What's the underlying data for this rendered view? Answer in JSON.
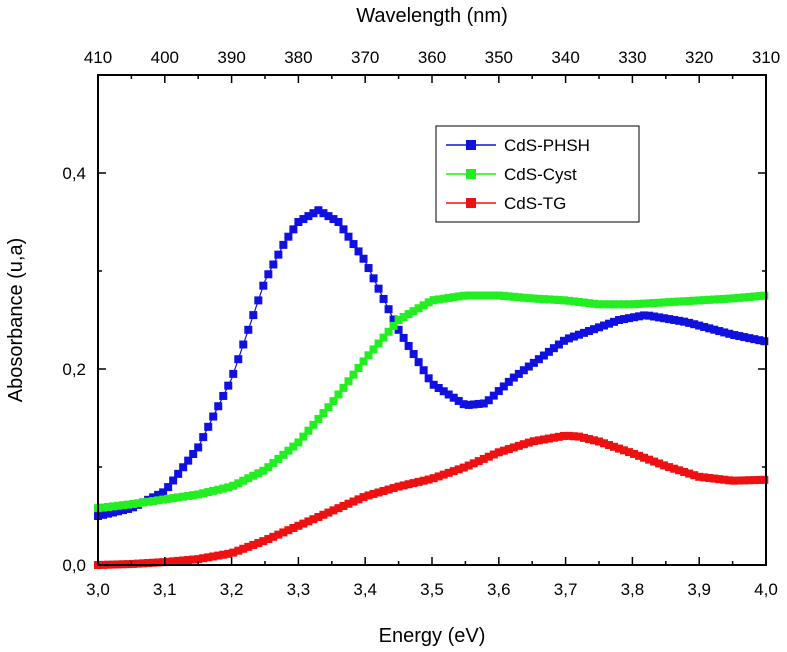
{
  "chart_data": {
    "type": "scatter",
    "xlabel": "Energy (eV)",
    "ylabel": "Abosorbance (u,a)",
    "top_axis_label": "Wavelength (nm)",
    "xlim": [
      3.0,
      4.0
    ],
    "ylim": [
      0.0,
      0.5
    ],
    "x_ticks": [
      3.0,
      3.1,
      3.2,
      3.3,
      3.4,
      3.5,
      3.6,
      3.7,
      3.8,
      3.9,
      4.0
    ],
    "x_tick_labels": [
      "3,0",
      "3,1",
      "3,2",
      "3,3",
      "3,4",
      "3,5",
      "3,6",
      "3,7",
      "3,8",
      "3,9",
      "4,0"
    ],
    "y_ticks": [
      0.0,
      0.2,
      0.4
    ],
    "y_tick_labels": [
      "0,0",
      "0,2",
      "0,4"
    ],
    "top_ticks_nm": [
      410,
      400,
      390,
      380,
      370,
      360,
      350,
      340,
      330,
      320,
      310
    ],
    "top_tick_labels": [
      "410",
      "400",
      "390",
      "380",
      "370",
      "360",
      "350",
      "340",
      "330",
      "320",
      "310"
    ],
    "grid": false,
    "legend_position": "top-right",
    "series": [
      {
        "name": "CdS-PHSH",
        "color": "#1010e0",
        "marker": "square",
        "x": [
          3.0,
          3.05,
          3.1,
          3.15,
          3.2,
          3.22,
          3.25,
          3.28,
          3.3,
          3.33,
          3.36,
          3.4,
          3.45,
          3.5,
          3.55,
          3.58,
          3.62,
          3.7,
          3.78,
          3.82,
          3.88,
          3.95,
          4.0
        ],
        "y": [
          0.05,
          0.058,
          0.075,
          0.12,
          0.19,
          0.23,
          0.29,
          0.33,
          0.35,
          0.362,
          0.35,
          0.31,
          0.24,
          0.185,
          0.163,
          0.165,
          0.19,
          0.23,
          0.25,
          0.255,
          0.248,
          0.235,
          0.228
        ]
      },
      {
        "name": "CdS-Cyst",
        "color": "#22ee22",
        "marker": "square",
        "x": [
          3.0,
          3.05,
          3.1,
          3.15,
          3.2,
          3.25,
          3.3,
          3.35,
          3.4,
          3.45,
          3.5,
          3.55,
          3.6,
          3.65,
          3.7,
          3.75,
          3.8,
          3.85,
          3.9,
          3.95,
          4.0
        ],
        "y": [
          0.058,
          0.062,
          0.067,
          0.072,
          0.08,
          0.097,
          0.125,
          0.165,
          0.21,
          0.25,
          0.27,
          0.275,
          0.275,
          0.272,
          0.27,
          0.266,
          0.266,
          0.268,
          0.27,
          0.272,
          0.275
        ]
      },
      {
        "name": "CdS-TG",
        "color": "#ee1111",
        "marker": "square",
        "x": [
          3.0,
          3.05,
          3.1,
          3.15,
          3.2,
          3.25,
          3.3,
          3.35,
          3.4,
          3.45,
          3.5,
          3.55,
          3.6,
          3.65,
          3.7,
          3.72,
          3.75,
          3.8,
          3.85,
          3.9,
          3.95,
          4.0
        ],
        "y": [
          0.0,
          0.001,
          0.003,
          0.006,
          0.012,
          0.025,
          0.04,
          0.055,
          0.07,
          0.08,
          0.088,
          0.1,
          0.115,
          0.126,
          0.132,
          0.131,
          0.126,
          0.114,
          0.101,
          0.09,
          0.086,
          0.087
        ]
      }
    ]
  }
}
